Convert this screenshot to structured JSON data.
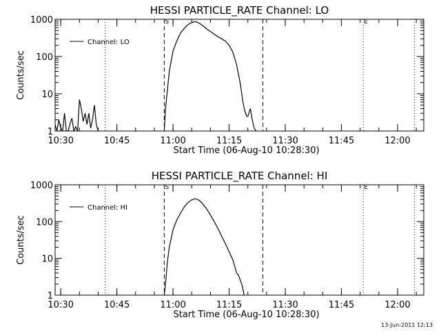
{
  "footer_date": "13-Jun-2011 12:13",
  "chart_data": [
    {
      "type": "line",
      "title": "HESSI PARTICLE_RATE Channel: LO",
      "xlabel": "Start Time (06-Aug-10 10:28:30)",
      "ylabel": "Counts/sec",
      "y_scale": "log",
      "ylim": [
        1,
        1000
      ],
      "xlim": [
        "10:28:30",
        "12:07:00"
      ],
      "x_ticks": [
        "10:30",
        "10:45",
        "11:00",
        "11:15",
        "11:30",
        "11:45",
        "12:00"
      ],
      "y_ticks": [
        "1",
        "10",
        "100",
        "1000"
      ],
      "legend": {
        "label": "Channel: LO",
        "placement": "top-left"
      },
      "markers": {
        "dashed": [
          {
            "time": "10:57:40",
            "label": "S"
          },
          {
            "time": "11:24:00",
            "label": ""
          }
        ],
        "dotted": [
          {
            "time": "10:41:50",
            "label": ""
          },
          {
            "time": "11:50:50",
            "label": "E"
          },
          {
            "time": "12:04:30",
            "label": ""
          }
        ]
      },
      "series": [
        {
          "x": [
            "10:28:30",
            "10:29:00",
            "10:29:30",
            "10:30:00",
            "10:30:30",
            "10:31:00",
            "10:31:30",
            "10:32:00",
            "10:32:30",
            "10:33:00",
            "10:33:30",
            "10:34:00",
            "10:34:30",
            "10:35:00",
            "10:35:30",
            "10:36:00",
            "10:36:30",
            "10:37:00",
            "10:37:30",
            "10:38:00",
            "10:38:30",
            "10:39:00",
            "10:39:30",
            "10:40:00",
            "10:57:40",
            "10:58:00",
            "10:59:00",
            "11:00:00",
            "11:01:00",
            "11:02:00",
            "11:03:00",
            "11:04:00",
            "11:05:00",
            "11:06:00",
            "11:07:00",
            "11:08:00",
            "11:09:00",
            "11:10:00",
            "11:11:00",
            "11:12:00",
            "11:13:00",
            "11:14:00",
            "11:15:00",
            "11:16:00",
            "11:17:00",
            "11:18:00",
            "11:18:40",
            "11:19:10",
            "11:19:40",
            "11:20:00",
            "11:20:40",
            "11:21:10",
            "11:21:40",
            "11:22:10"
          ],
          "y": [
            1.5,
            1,
            2,
            1.2,
            1,
            3,
            1,
            1,
            1.6,
            2.2,
            1,
            1.3,
            1,
            7,
            4,
            1.8,
            3,
            1.5,
            3,
            1.2,
            2,
            5,
            1.5,
            1,
            1,
            4,
            40,
            140,
            260,
            430,
            570,
            720,
            820,
            870,
            790,
            670,
            550,
            470,
            400,
            340,
            300,
            260,
            200,
            130,
            60,
            18,
            6,
            3.5,
            2.5,
            2.5,
            4,
            2,
            1.2,
            1
          ]
        }
      ]
    },
    {
      "type": "line",
      "title": "HESSI PARTICLE_RATE Channel: HI",
      "xlabel": "Start Time (06-Aug-10 10:28:30)",
      "ylabel": "Counts/sec",
      "y_scale": "log",
      "ylim": [
        1,
        1000
      ],
      "xlim": [
        "10:28:30",
        "12:07:00"
      ],
      "x_ticks": [
        "10:30",
        "10:45",
        "11:00",
        "11:15",
        "11:30",
        "11:45",
        "12:00"
      ],
      "y_ticks": [
        "1",
        "10",
        "100",
        "1000"
      ],
      "legend": {
        "label": "Channel: HI",
        "placement": "top-left"
      },
      "markers": {
        "dashed": [
          {
            "time": "10:57:40",
            "label": "S"
          },
          {
            "time": "11:24:00",
            "label": ""
          }
        ],
        "dotted": [
          {
            "time": "10:41:50",
            "label": ""
          },
          {
            "time": "11:50:50",
            "label": "E"
          },
          {
            "time": "12:04:30",
            "label": ""
          }
        ]
      },
      "series": [
        {
          "x": [
            "10:57:40",
            "10:58:00",
            "10:58:30",
            "10:59:00",
            "11:00:00",
            "11:01:00",
            "11:02:00",
            "11:03:00",
            "11:04:00",
            "11:05:00",
            "11:06:00",
            "11:07:00",
            "11:08:00",
            "11:09:00",
            "11:10:00",
            "11:11:00",
            "11:12:00",
            "11:13:00",
            "11:14:00",
            "11:15:00",
            "11:16:00",
            "11:16:30",
            "11:17:00",
            "11:17:30",
            "11:18:00",
            "11:18:30",
            "11:19:00"
          ],
          "y": [
            1,
            2,
            8,
            20,
            60,
            110,
            170,
            250,
            330,
            390,
            420,
            380,
            300,
            220,
            150,
            100,
            65,
            40,
            25,
            15,
            9,
            6,
            4,
            3.5,
            2.5,
            1.8,
            1
          ]
        }
      ]
    }
  ]
}
